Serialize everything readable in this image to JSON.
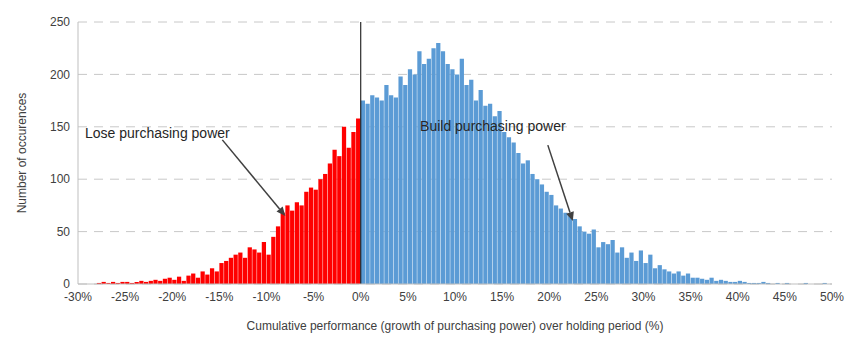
{
  "chart_data": {
    "type": "histogram",
    "x_label": "Cumulative performance (growth of purchasing power) over holding period (%)",
    "y_label": "Number of occurences",
    "bins": [
      -30,
      -29.5,
      -29,
      -28.5,
      -28,
      -27.5,
      -27,
      -26.5,
      -26,
      -25.5,
      -25,
      -24.5,
      -24,
      -23.5,
      -23,
      -22.5,
      -22,
      -21.5,
      -21,
      -20.5,
      -20,
      -19.5,
      -19,
      -18.5,
      -18,
      -17.5,
      -17,
      -16.5,
      -16,
      -15.5,
      -15,
      -14.5,
      -14,
      -13.5,
      -13,
      -12.5,
      -12,
      -11.5,
      -11,
      -10.5,
      -10,
      -9.5,
      -9,
      -8.5,
      -8,
      -7.5,
      -7,
      -6.5,
      -6,
      -5.5,
      -5,
      -4.5,
      -4,
      -3.5,
      -3,
      -2.5,
      -2,
      -1.5,
      -1,
      -0.5,
      0,
      0.5,
      1,
      1.5,
      2,
      2.5,
      3,
      3.5,
      4,
      4.5,
      5,
      5.5,
      6,
      6.5,
      7,
      7.5,
      8,
      8.5,
      9,
      9.5,
      10,
      10.5,
      11,
      11.5,
      12,
      12.5,
      13,
      13.5,
      14,
      14.5,
      15,
      15.5,
      16,
      16.5,
      17,
      17.5,
      18,
      18.5,
      19,
      19.5,
      20,
      20.5,
      21,
      21.5,
      22,
      22.5,
      23,
      23.5,
      24,
      24.5,
      25,
      25.5,
      26,
      26.5,
      27,
      27.5,
      28,
      28.5,
      29,
      29.5,
      30,
      30.5,
      31,
      31.5,
      32,
      32.5,
      33,
      33.5,
      34,
      34.5,
      35,
      35.5,
      36,
      36.5,
      37,
      37.5,
      38,
      38.5,
      39,
      39.5,
      40,
      40.5,
      41,
      41.5,
      42,
      42.5,
      43,
      43.5,
      44,
      44.5,
      45,
      45.5,
      46,
      46.5,
      47,
      47.5,
      48,
      48.5,
      49,
      49.5,
      50
    ],
    "values": [
      0,
      0,
      0,
      0,
      1,
      2,
      1,
      2,
      1,
      2,
      2,
      1,
      2,
      3,
      2,
      3,
      4,
      3,
      5,
      6,
      4,
      7,
      3,
      8,
      10,
      6,
      12,
      9,
      15,
      12,
      20,
      22,
      25,
      28,
      30,
      25,
      35,
      33,
      30,
      40,
      28,
      45,
      55,
      68,
      75,
      70,
      78,
      75,
      88,
      92,
      90,
      100,
      105,
      115,
      128,
      122,
      150,
      130,
      145,
      158,
      175,
      172,
      180,
      178,
      175,
      190,
      180,
      178,
      198,
      190,
      205,
      200,
      222,
      210,
      215,
      225,
      230,
      222,
      210,
      205,
      200,
      215,
      190,
      195,
      175,
      185,
      170,
      172,
      160,
      165,
      145,
      140,
      135,
      125,
      115,
      118,
      105,
      100,
      95,
      88,
      85,
      75,
      72,
      68,
      65,
      62,
      55,
      50,
      48,
      52,
      35,
      40,
      38,
      42,
      30,
      35,
      25,
      30,
      22,
      32,
      20,
      28,
      15,
      18,
      14,
      12,
      10,
      12,
      8,
      10,
      6,
      6,
      5,
      4,
      6,
      3,
      4,
      3,
      2,
      2,
      3,
      2,
      1,
      1,
      1,
      2,
      1,
      0,
      1,
      0,
      1,
      0,
      0,
      0,
      1,
      0,
      0,
      0,
      1,
      0
    ],
    "colors": [
      "#ff0000",
      "#ff0000",
      "#ff0000",
      "#ff0000",
      "#ff0000",
      "#ff0000",
      "#ff0000",
      "#ff0000",
      "#ff0000",
      "#ff0000",
      "#ff0000",
      "#ff0000",
      "#ff0000",
      "#ff0000",
      "#ff0000",
      "#ff0000",
      "#ff0000",
      "#ff0000",
      "#ff0000",
      "#ff0000",
      "#ff0000",
      "#ff0000",
      "#ff0000",
      "#ff0000",
      "#ff0000",
      "#ff0000",
      "#ff0000",
      "#ff0000",
      "#ff0000",
      "#ff0000",
      "#ff0000",
      "#ff0000",
      "#ff0000",
      "#ff0000",
      "#ff0000",
      "#ff0000",
      "#ff0000",
      "#ff0000",
      "#ff0000",
      "#ff0000",
      "#ff0000",
      "#ff0000",
      "#ff0000",
      "#ff0000",
      "#ff0000",
      "#ff0000",
      "#ff0000",
      "#ff0000",
      "#ff0000",
      "#ff0000",
      "#ff0000",
      "#ff0000",
      "#ff0000",
      "#ff0000",
      "#ff0000",
      "#ff0000",
      "#ff0000",
      "#ff0000",
      "#ff0000",
      "#ff0000",
      "#5b9bd5",
      "#5b9bd5",
      "#5b9bd5",
      "#5b9bd5",
      "#5b9bd5",
      "#5b9bd5",
      "#5b9bd5",
      "#5b9bd5",
      "#5b9bd5",
      "#5b9bd5",
      "#5b9bd5",
      "#5b9bd5",
      "#5b9bd5",
      "#5b9bd5",
      "#5b9bd5",
      "#5b9bd5",
      "#5b9bd5",
      "#5b9bd5",
      "#5b9bd5",
      "#5b9bd5",
      "#5b9bd5",
      "#5b9bd5",
      "#5b9bd5",
      "#5b9bd5",
      "#5b9bd5",
      "#5b9bd5",
      "#5b9bd5",
      "#5b9bd5",
      "#5b9bd5",
      "#5b9bd5",
      "#5b9bd5",
      "#5b9bd5",
      "#5b9bd5",
      "#5b9bd5",
      "#5b9bd5",
      "#5b9bd5",
      "#5b9bd5",
      "#5b9bd5",
      "#5b9bd5",
      "#5b9bd5",
      "#5b9bd5",
      "#5b9bd5",
      "#5b9bd5",
      "#5b9bd5",
      "#5b9bd5",
      "#5b9bd5",
      "#5b9bd5",
      "#5b9bd5",
      "#5b9bd5",
      "#5b9bd5",
      "#5b9bd5",
      "#5b9bd5",
      "#5b9bd5",
      "#5b9bd5",
      "#5b9bd5",
      "#5b9bd5",
      "#5b9bd5",
      "#5b9bd5",
      "#5b9bd5",
      "#5b9bd5",
      "#5b9bd5",
      "#5b9bd5",
      "#5b9bd5",
      "#5b9bd5",
      "#5b9bd5",
      "#5b9bd5",
      "#5b9bd5",
      "#5b9bd5",
      "#5b9bd5",
      "#5b9bd5",
      "#5b9bd5",
      "#5b9bd5",
      "#5b9bd5",
      "#5b9bd5",
      "#5b9bd5",
      "#5b9bd5",
      "#5b9bd5",
      "#5b9bd5",
      "#5b9bd5",
      "#5b9bd5",
      "#5b9bd5",
      "#5b9bd5",
      "#5b9bd5",
      "#5b9bd5",
      "#5b9bd5",
      "#5b9bd5",
      "#5b9bd5",
      "#5b9bd5",
      "#5b9bd5",
      "#5b9bd5",
      "#5b9bd5",
      "#5b9bd5",
      "#5b9bd5",
      "#5b9bd5",
      "#5b9bd5",
      "#5b9bd5",
      "#5b9bd5",
      "#5b9bd5",
      "#5b9bd5",
      "#5b9bd5"
    ],
    "xlim": [
      -30,
      50
    ],
    "xticks": [
      {
        "value": -30,
        "label": "-30%"
      },
      {
        "value": -25,
        "label": "-25%"
      },
      {
        "value": -20,
        "label": "-20%"
      },
      {
        "value": -15,
        "label": "-15%"
      },
      {
        "value": -10,
        "label": "-10%"
      },
      {
        "value": -5,
        "label": "-5%"
      },
      {
        "value": 0,
        "label": "0%"
      },
      {
        "value": 5,
        "label": "5%"
      },
      {
        "value": 10,
        "label": "10%"
      },
      {
        "value": 15,
        "label": "15%"
      },
      {
        "value": 20,
        "label": "20%"
      },
      {
        "value": 25,
        "label": "25%"
      },
      {
        "value": 30,
        "label": "30%"
      },
      {
        "value": 35,
        "label": "35%"
      },
      {
        "value": 40,
        "label": "40%"
      },
      {
        "value": 45,
        "label": "45%"
      },
      {
        "value": 50,
        "label": "50%"
      }
    ],
    "ylim": [
      0,
      250
    ],
    "yticks": [
      0,
      50,
      100,
      150,
      200,
      250
    ],
    "grid": true,
    "annotations": [
      {
        "text": "Lose purchasing power",
        "x": -8,
        "y": 65
      },
      {
        "text": "Build purchasing power",
        "x": 22.5,
        "y": 60
      }
    ]
  }
}
